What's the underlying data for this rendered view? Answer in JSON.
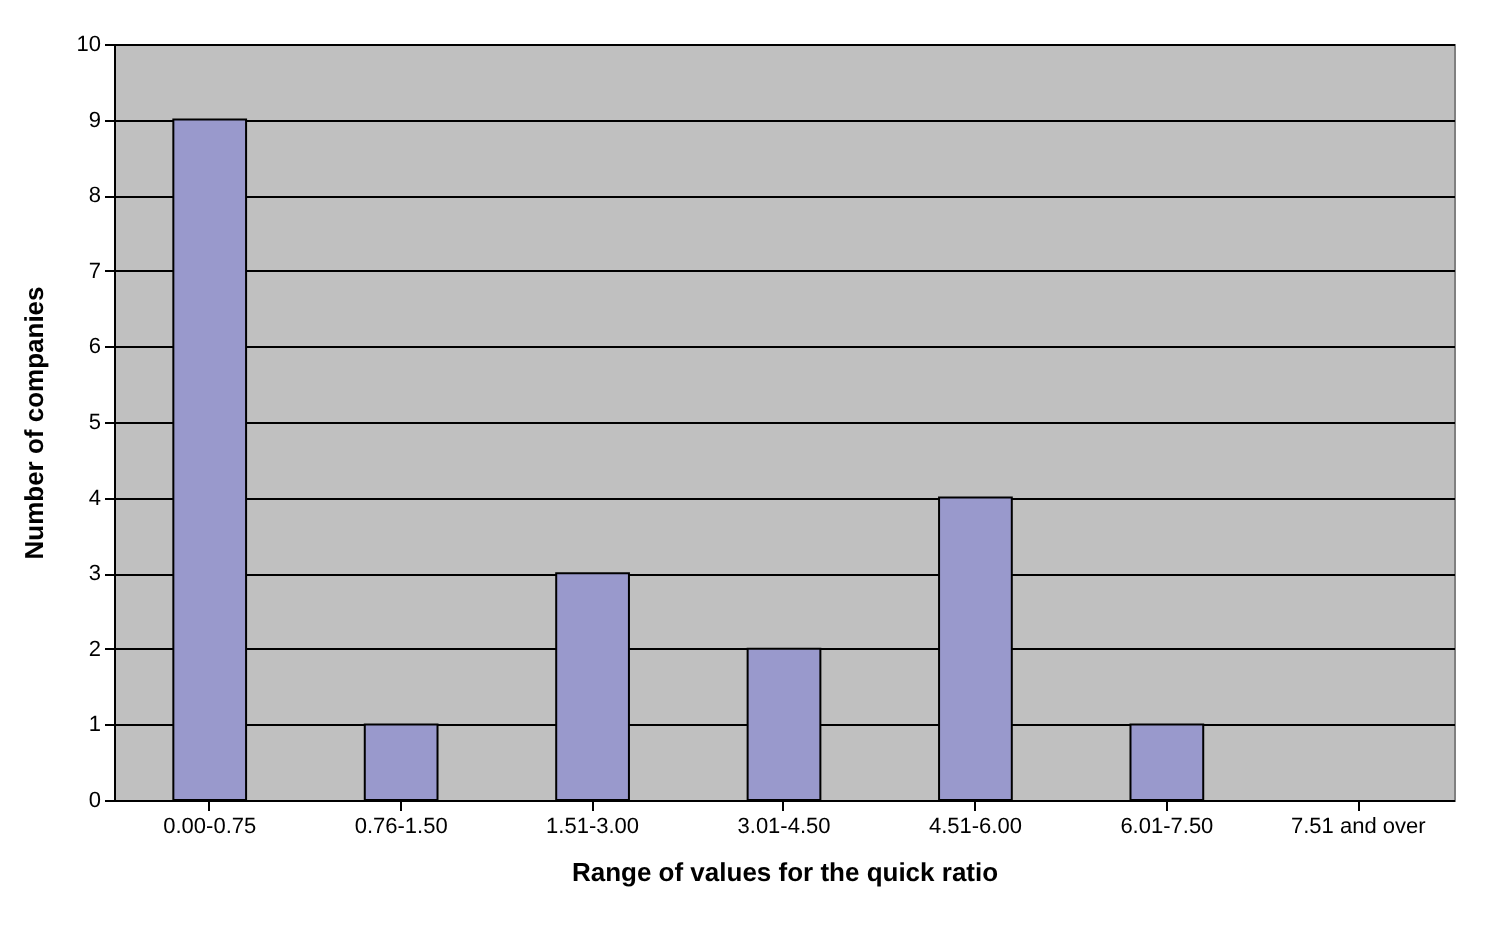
{
  "chart_data": {
    "type": "bar",
    "xlabel": "Range of values for the quick ratio",
    "ylabel": "Number of companies",
    "categories": [
      "0.00-0.75",
      "0.76-1.50",
      "1.51-3.00",
      "3.01-4.50",
      "4.51-6.00",
      "6.01-7.50",
      "7.51 and over"
    ],
    "values": [
      9,
      1,
      3,
      2,
      4,
      1,
      0
    ],
    "color": "#9999cc",
    "ylim": [
      0,
      10
    ],
    "yticks": [
      0,
      1,
      2,
      3,
      4,
      5,
      6,
      7,
      8,
      9,
      10
    ],
    "grid": "y"
  }
}
